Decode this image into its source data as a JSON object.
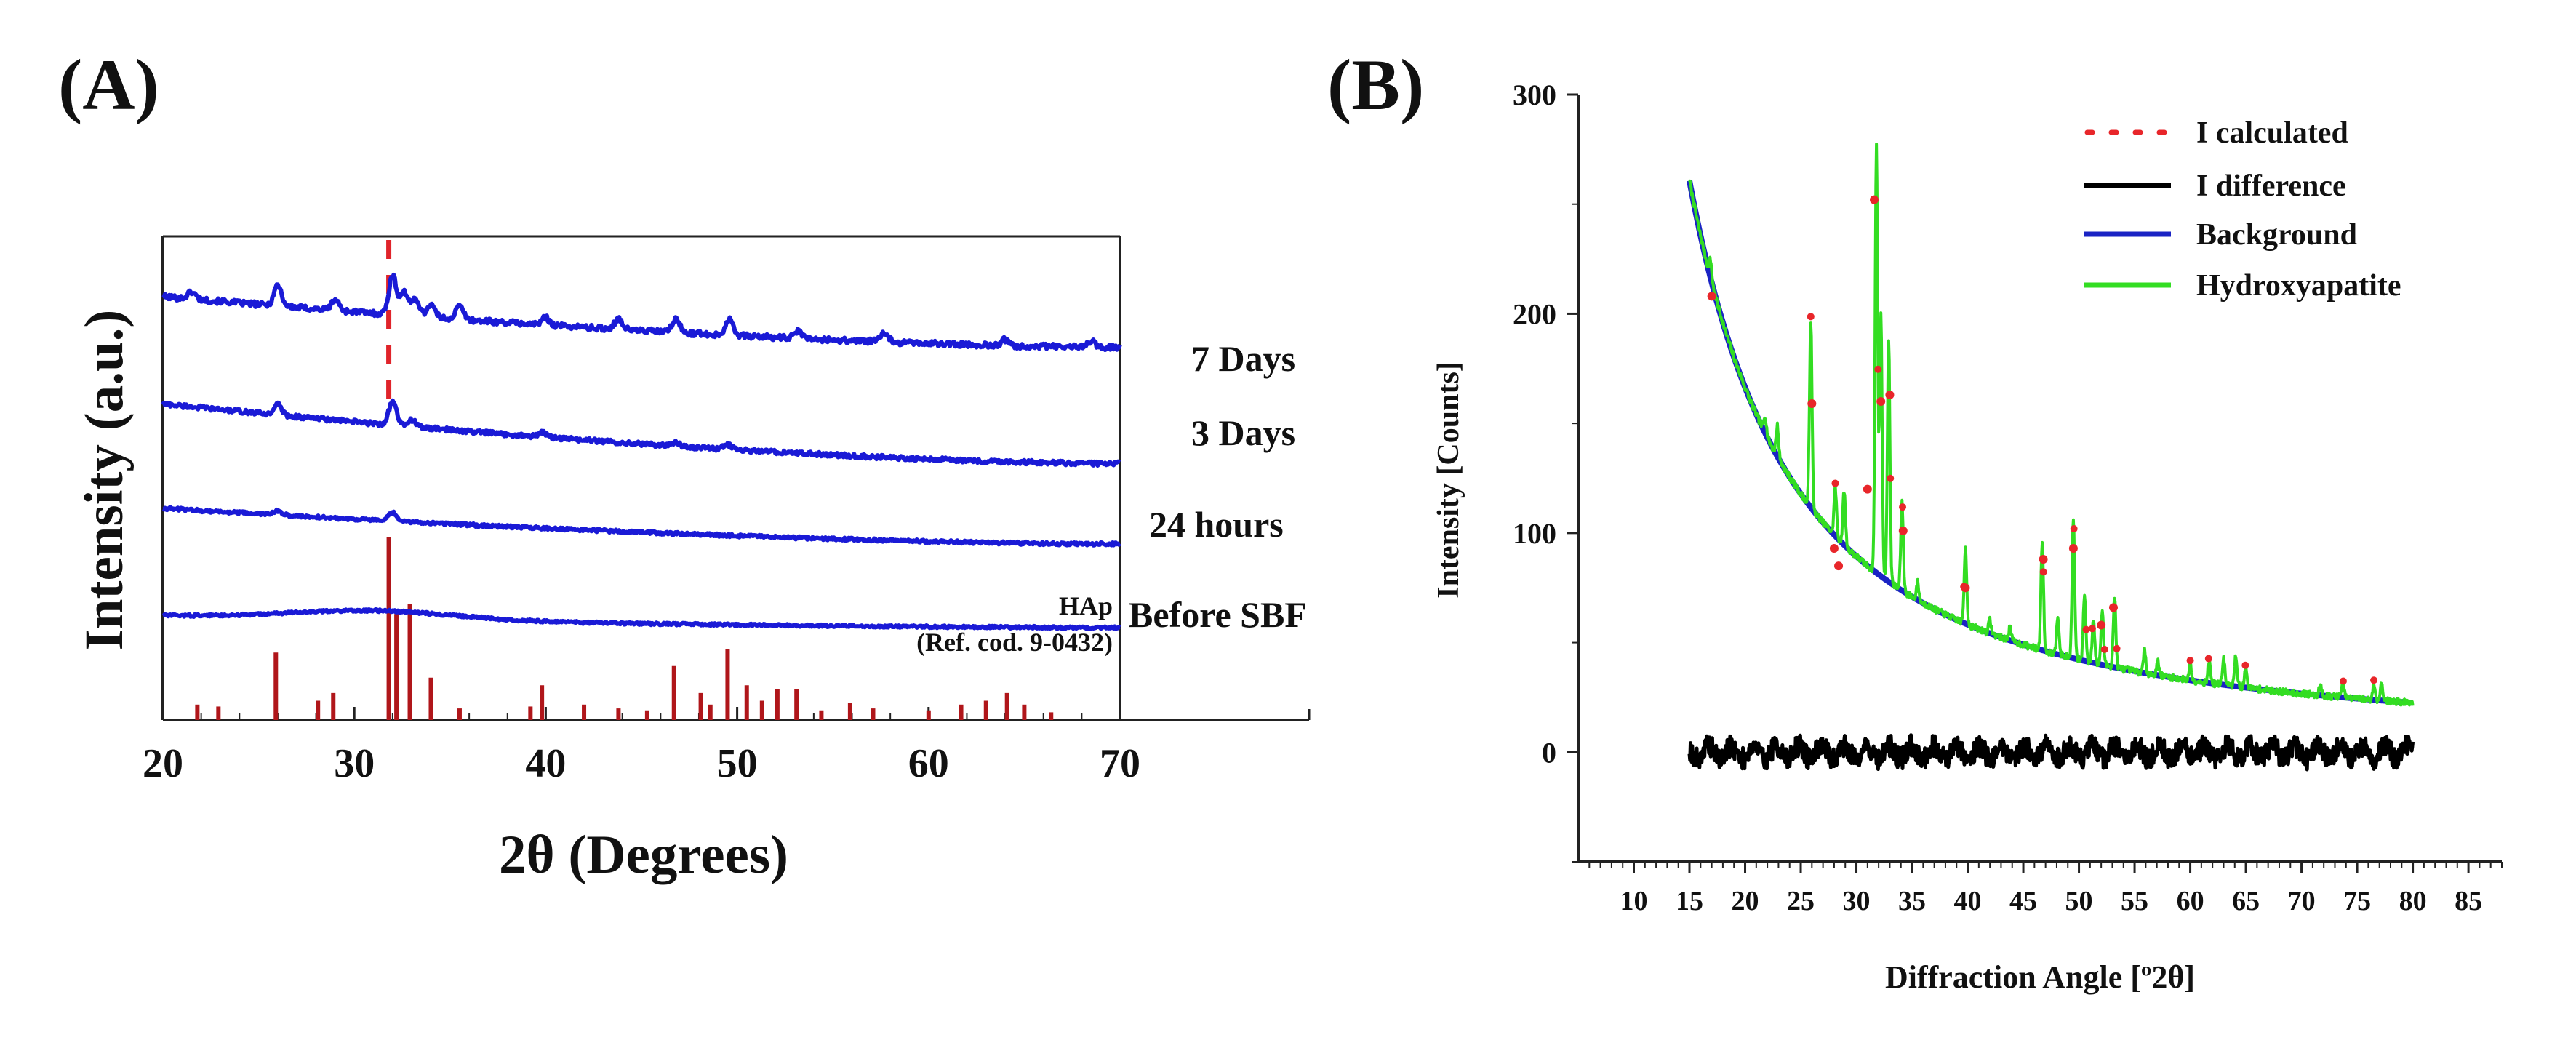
{
  "chart_data": [
    {
      "panel": "(A)",
      "type": "line",
      "title": "",
      "xlabel": "2θ (Degrees)",
      "ylabel": "Intensity (a.u.)",
      "xlim": [
        20,
        70
      ],
      "xticks": [
        20,
        30,
        40,
        50,
        60,
        70
      ],
      "grid": false,
      "line_color": "#1a1ad6",
      "series": [
        {
          "name": "7 Days",
          "baseline_start": 7.1,
          "baseline_end": 6.25,
          "noise": 0.09,
          "peaks": [
            [
              21.5,
              0.12
            ],
            [
              26.0,
              0.35
            ],
            [
              29.0,
              0.18
            ],
            [
              32.0,
              0.65
            ],
            [
              32.6,
              0.4
            ],
            [
              33.2,
              0.3
            ],
            [
              34.0,
              0.22
            ],
            [
              35.5,
              0.22
            ],
            [
              40.0,
              0.12
            ],
            [
              43.8,
              0.18
            ],
            [
              46.8,
              0.22
            ],
            [
              49.6,
              0.28
            ],
            [
              53.2,
              0.12
            ],
            [
              57.7,
              0.15
            ],
            [
              64.0,
              0.1
            ],
            [
              68.5,
              0.1
            ]
          ]
        },
        {
          "name": "3 Days",
          "baseline_start": 5.3,
          "baseline_end": 4.3,
          "noise": 0.07,
          "peaks": [
            [
              26.0,
              0.18
            ],
            [
              32.0,
              0.4
            ],
            [
              33.0,
              0.12
            ],
            [
              39.8,
              0.08
            ],
            [
              46.8,
              0.06
            ],
            [
              49.5,
              0.08
            ]
          ]
        },
        {
          "name": "24 hours",
          "baseline_start": 3.55,
          "baseline_end": 2.95,
          "noise": 0.05,
          "peaks": [
            [
              26.0,
              0.07
            ],
            [
              32.0,
              0.14
            ]
          ]
        },
        {
          "name": "Before SBF",
          "baseline_start": 1.75,
          "baseline_end": 1.55,
          "noise": 0.04,
          "hump": [
            31,
            0.15,
            6
          ],
          "peaks": []
        }
      ],
      "series_labels": [
        "7 Days",
        "3 Days",
        "24 hours",
        "Before SBF"
      ],
      "reference": {
        "name": "HAp",
        "code": "(Ref. cod. 9-0432)",
        "color": "#b0161a",
        "marker_color": "#e0242a",
        "marker_x": 31.8,
        "sticks": [
          [
            21.8,
            0.08
          ],
          [
            22.9,
            0.07
          ],
          [
            25.9,
            0.35
          ],
          [
            28.1,
            0.1
          ],
          [
            28.9,
            0.14
          ],
          [
            31.8,
            0.95
          ],
          [
            32.2,
            0.55
          ],
          [
            32.9,
            0.6
          ],
          [
            34.0,
            0.22
          ],
          [
            35.5,
            0.06
          ],
          [
            39.2,
            0.07
          ],
          [
            39.8,
            0.18
          ],
          [
            42.0,
            0.08
          ],
          [
            43.8,
            0.06
          ],
          [
            45.3,
            0.05
          ],
          [
            46.7,
            0.28
          ],
          [
            48.1,
            0.14
          ],
          [
            48.6,
            0.08
          ],
          [
            49.5,
            0.37
          ],
          [
            50.5,
            0.18
          ],
          [
            51.3,
            0.1
          ],
          [
            52.1,
            0.16
          ],
          [
            53.1,
            0.16
          ],
          [
            54.4,
            0.05
          ],
          [
            55.9,
            0.09
          ],
          [
            57.1,
            0.06
          ],
          [
            60.0,
            0.05
          ],
          [
            61.7,
            0.08
          ],
          [
            63.0,
            0.1
          ],
          [
            64.1,
            0.14
          ],
          [
            65.0,
            0.08
          ],
          [
            66.4,
            0.04
          ]
        ]
      }
    },
    {
      "panel": "(B)",
      "type": "line",
      "title": "",
      "xlabel": "Diffraction Angle [º2θ]",
      "ylabel": "Intensity [Counts]",
      "xlim": [
        5,
        88
      ],
      "ylim": [
        -50,
        300
      ],
      "xticks": [
        10,
        15,
        20,
        25,
        30,
        35,
        40,
        45,
        50,
        55,
        60,
        65,
        70,
        75,
        80,
        85
      ],
      "yticks": [
        0,
        100,
        200,
        300
      ],
      "grid": false,
      "legend_position": "top-right",
      "background_model": {
        "A": 420,
        "t0": 11,
        "p": 1.6,
        "c": 5
      },
      "series": [
        {
          "name": "I calculated",
          "color": "#e8262a",
          "style": "dotted"
        },
        {
          "name": "I difference",
          "color": "#000000",
          "style": "solid"
        },
        {
          "name": "Background",
          "color": "#1a23c4",
          "style": "solid"
        },
        {
          "name": "Hydroxyapatite",
          "color": "#33dd22",
          "style": "solid"
        }
      ],
      "x_range": [
        15,
        80
      ],
      "peaks": [
        [
          16.9,
          8
        ],
        [
          21.8,
          8
        ],
        [
          22.9,
          14
        ],
        [
          25.9,
          85
        ],
        [
          28.1,
          22
        ],
        [
          28.9,
          25
        ],
        [
          31.8,
          195
        ],
        [
          32.2,
          120
        ],
        [
          32.9,
          110
        ],
        [
          34.1,
          40
        ],
        [
          35.5,
          8
        ],
        [
          39.8,
          35
        ],
        [
          42.0,
          6
        ],
        [
          43.8,
          6
        ],
        [
          46.7,
          50
        ],
        [
          48.1,
          18
        ],
        [
          49.5,
          63
        ],
        [
          50.5,
          30
        ],
        [
          51.3,
          20
        ],
        [
          52.1,
          25
        ],
        [
          53.2,
          32
        ],
        [
          55.9,
          10
        ],
        [
          57.1,
          6
        ],
        [
          60.0,
          7
        ],
        [
          61.7,
          10
        ],
        [
          63.0,
          12
        ],
        [
          64.1,
          14
        ],
        [
          65.0,
          9
        ],
        [
          71.7,
          5
        ],
        [
          73.7,
          6
        ],
        [
          76.5,
          7
        ],
        [
          77.2,
          8
        ]
      ],
      "calc_points": [
        [
          17,
          208
        ],
        [
          26.0,
          159
        ],
        [
          28.0,
          93
        ],
        [
          28.4,
          85
        ],
        [
          31.0,
          120
        ],
        [
          31.6,
          252
        ],
        [
          32.2,
          160
        ],
        [
          33.0,
          163
        ],
        [
          34.2,
          101
        ],
        [
          39.8,
          75
        ],
        [
          46.8,
          88
        ],
        [
          49.5,
          93
        ],
        [
          53.1,
          66
        ],
        [
          52.0,
          58
        ]
      ],
      "difference_noise": 5
    }
  ]
}
